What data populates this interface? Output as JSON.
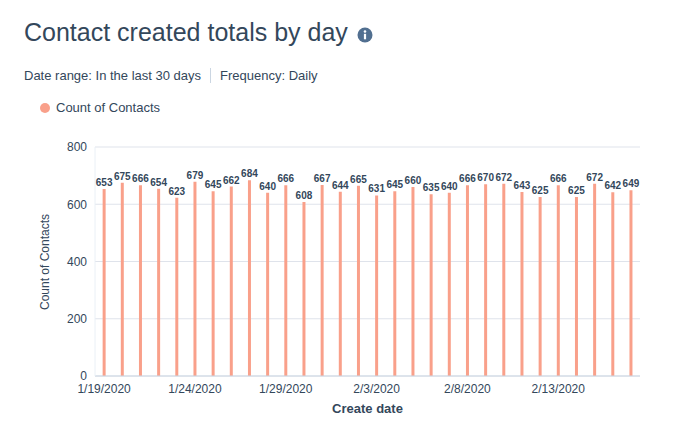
{
  "chart_data": {
    "type": "bar",
    "title": "Contact created totals by day",
    "subtitle": [
      "Date range: In the last 30 days",
      "Frequency: Daily"
    ],
    "x_label": "Create date",
    "y_label": "Count of Contacts",
    "categories": [
      "1/19/2020",
      null,
      null,
      null,
      null,
      "1/24/2020",
      null,
      null,
      null,
      null,
      "1/29/2020",
      null,
      null,
      null,
      null,
      "2/3/2020",
      null,
      null,
      null,
      null,
      "2/8/2020",
      null,
      null,
      null,
      null,
      "2/13/2020",
      null,
      null,
      null,
      null
    ],
    "series": [
      {
        "name": "Count of Contacts",
        "color": "#f9a08a",
        "values": [
          653,
          675,
          666,
          654,
          623,
          679,
          645,
          662,
          684,
          640,
          666,
          608,
          667,
          644,
          665,
          631,
          645,
          660,
          635,
          640,
          666,
          670,
          672,
          643,
          625,
          666,
          625,
          672,
          642,
          649
        ]
      }
    ],
    "ylim": [
      0,
      800
    ],
    "yticks": [
      0,
      200,
      400,
      600,
      800
    ],
    "grid": true,
    "legend": "top-left",
    "data_labels": true
  }
}
